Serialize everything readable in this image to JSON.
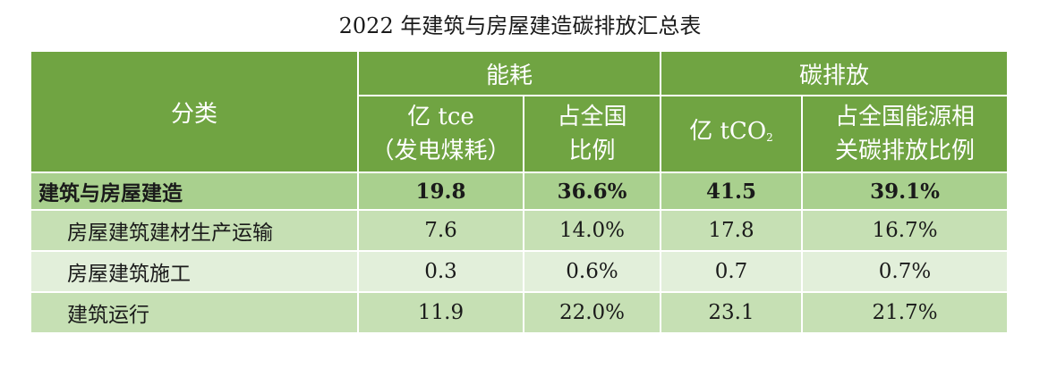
{
  "title": "2022 年建筑与房屋建造碳排放汇总表",
  "header": {
    "category": "分类",
    "energy": "能耗",
    "carbon": "碳排放",
    "energy_unit_line1": "亿 tce",
    "energy_unit_line2": "（发电煤耗）",
    "energy_share_line1": "占全国",
    "energy_share_line2": "比例",
    "carbon_unit_prefix": "亿 tCO",
    "carbon_unit_sub": "2",
    "carbon_share_line1": "占全国能源相",
    "carbon_share_line2": "关碳排放比例"
  },
  "rows": [
    {
      "label": "建筑与房屋建造",
      "energy": "19.8",
      "energy_share": "36.6%",
      "carbon": "41.5",
      "carbon_share": "39.1%"
    },
    {
      "label": "房屋建筑建材生产运输",
      "energy": "7.6",
      "energy_share": "14.0%",
      "carbon": "17.8",
      "carbon_share": "16.7%"
    },
    {
      "label": "房屋建筑施工",
      "energy": "0.3",
      "energy_share": "0.6%",
      "carbon": "0.7",
      "carbon_share": "0.7%"
    },
    {
      "label": "建筑运行",
      "energy": "11.9",
      "energy_share": "22.0%",
      "carbon": "23.1",
      "carbon_share": "21.7%"
    }
  ],
  "colors": {
    "header_bg": "#70a442",
    "total_row_bg": "#a9d08e",
    "row_alt_1": "#c6e0b4",
    "row_alt_2": "#e2efda"
  }
}
